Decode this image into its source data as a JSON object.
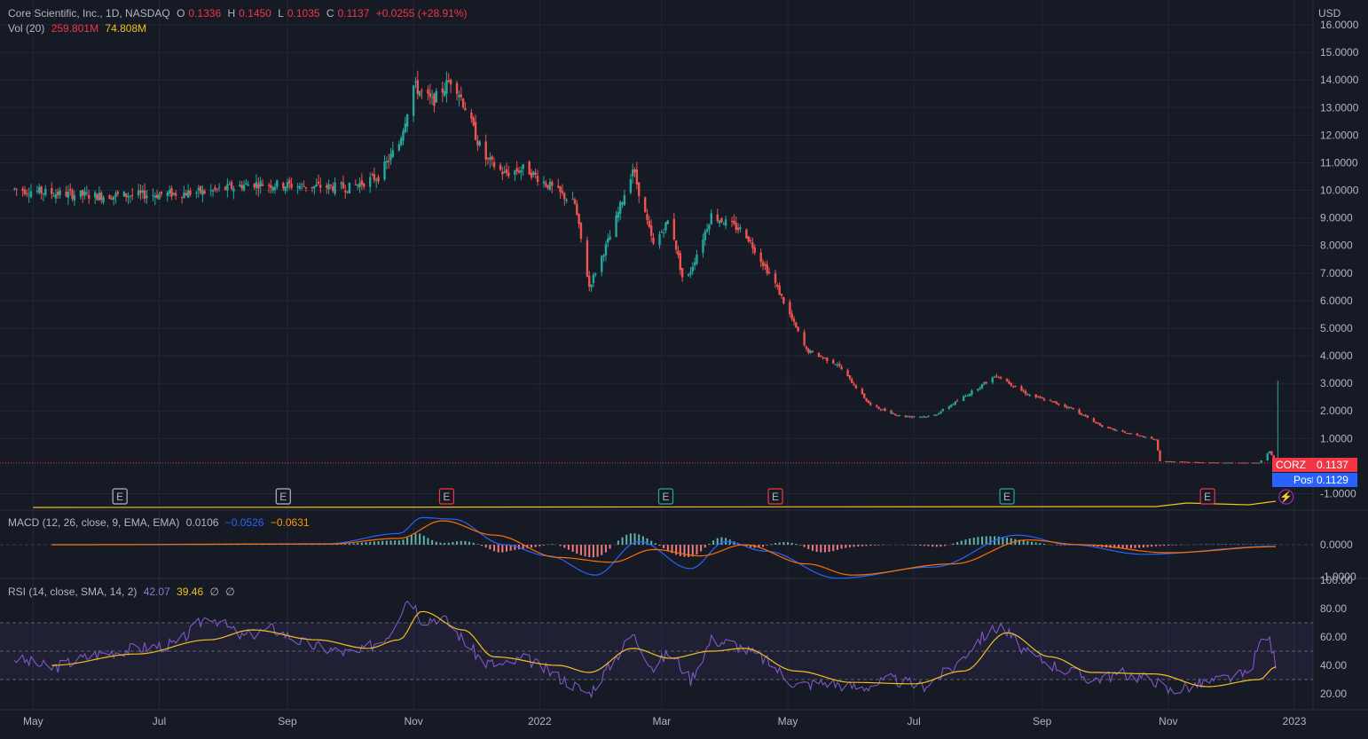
{
  "header": {
    "symbol_desc": "Core Scientific, Inc., 1D, NASDAQ",
    "o_label": "O",
    "o": "0.1336",
    "h_label": "H",
    "h": "0.1450",
    "l_label": "L",
    "l": "0.1035",
    "c_label": "C",
    "c": "0.1137",
    "change": "+0.0255 (+28.91%)",
    "vol_label": "Vol (20)",
    "vol": "259.801M",
    "vol_ma": "74.808M",
    "currency": "USD"
  },
  "macd_legend": {
    "label": "MACD (12, 26, close, 9, EMA, EMA)",
    "hist": "0.0106",
    "macd": "−0.0526",
    "signal": "−0.0631"
  },
  "rsi_legend": {
    "label": "RSI (14, close, SMA, 14, 2)",
    "rsi": "42.07",
    "sma": "39.46",
    "x1": "∅",
    "x2": "∅"
  },
  "price_tags": {
    "symbol": "CORZ",
    "last": "0.1137",
    "post_label": "Post",
    "post": "0.1129"
  },
  "events": {
    "earnings_glyph": "E",
    "dividend_glyph": "⚡"
  },
  "colors": {
    "up": "#26a69a",
    "down": "#ef5350",
    "macd": "#2962ff",
    "signal": "#ff6d00",
    "rsi": "#7e57c2",
    "rsi_sma": "#f0c020",
    "volume_ma": "#f0c020",
    "background": "#161a25"
  },
  "chart_data": [
    {
      "type": "candlestick",
      "title": "Core Scientific, Inc., 1D, NASDAQ",
      "ylabel": "USD",
      "ylim": [
        -1.5,
        16
      ],
      "yticks": [
        "16.0000",
        "15.0000",
        "14.0000",
        "13.0000",
        "12.0000",
        "11.0000",
        "10.0000",
        "9.0000",
        "8.0000",
        "7.0000",
        "6.0000",
        "5.0000",
        "4.0000",
        "3.0000",
        "2.0000",
        "1.0000",
        "-1.0000"
      ],
      "x_ticks": [
        "May",
        "Jul",
        "Sep",
        "Nov",
        "2022",
        "Mar",
        "May",
        "Jul",
        "Sep",
        "Nov",
        "2023"
      ],
      "x_range": [
        "2021-04-15",
        "2023-01-10"
      ],
      "close_approx": [
        [
          "2021-04-22",
          10.05
        ],
        [
          "2021-05-10",
          9.9
        ],
        [
          "2021-06-01",
          9.8
        ],
        [
          "2021-07-01",
          9.85
        ],
        [
          "2021-07-25",
          9.95
        ],
        [
          "2021-08-15",
          10.25
        ],
        [
          "2021-09-10",
          10.15
        ],
        [
          "2021-10-01",
          10.1
        ],
        [
          "2021-10-15",
          10.5
        ],
        [
          "2021-10-25",
          11.7
        ],
        [
          "2021-11-01",
          13.8
        ],
        [
          "2021-11-10",
          13.2
        ],
        [
          "2021-11-20",
          14.1
        ],
        [
          "2021-11-26",
          13.0
        ],
        [
          "2021-12-05",
          11.2
        ],
        [
          "2021-12-15",
          10.6
        ],
        [
          "2021-12-25",
          10.8
        ],
        [
          "2022-01-05",
          10.2
        ],
        [
          "2022-01-18",
          9.5
        ],
        [
          "2022-01-25",
          6.5
        ],
        [
          "2022-02-05",
          8.5
        ],
        [
          "2022-02-15",
          10.8
        ],
        [
          "2022-02-25",
          8.0
        ],
        [
          "2022-03-05",
          9.0
        ],
        [
          "2022-03-12",
          6.5
        ],
        [
          "2022-03-25",
          9.1
        ],
        [
          "2022-04-10",
          8.5
        ],
        [
          "2022-04-25",
          6.6
        ],
        [
          "2022-05-10",
          4.2
        ],
        [
          "2022-05-25",
          3.7
        ],
        [
          "2022-06-10",
          2.2
        ],
        [
          "2022-06-25",
          1.8
        ],
        [
          "2022-07-10",
          1.8
        ],
        [
          "2022-07-25",
          2.5
        ],
        [
          "2022-08-10",
          3.3
        ],
        [
          "2022-08-25",
          2.6
        ],
        [
          "2022-09-15",
          2.1
        ],
        [
          "2022-10-01",
          1.4
        ],
        [
          "2022-10-26",
          0.95
        ],
        [
          "2022-10-28",
          0.18
        ],
        [
          "2022-11-20",
          0.13
        ],
        [
          "2022-12-15",
          0.12
        ],
        [
          "2022-12-20",
          0.55
        ],
        [
          "2022-12-23",
          0.11
        ]
      ],
      "spikes": [
        [
          "2022-12-24",
          3.1
        ]
      ],
      "last": 0.1137,
      "post": 0.1129
    },
    {
      "type": "line",
      "title": "MACD (12, 26, close, 9, EMA, EMA)",
      "ylim": [
        -1.0,
        1.0
      ],
      "yticks": [
        "0.0000",
        "-1.0000"
      ],
      "series": [
        {
          "name": "MACD",
          "values": [
            [
              "2021-05-10",
              0.0
            ],
            [
              "2021-09-20",
              0.03
            ],
            [
              "2021-10-25",
              0.35
            ],
            [
              "2021-11-05",
              0.85
            ],
            [
              "2021-11-20",
              0.8
            ],
            [
              "2021-12-15",
              0.0
            ],
            [
              "2022-01-05",
              -0.35
            ],
            [
              "2022-01-28",
              -0.95
            ],
            [
              "2022-02-18",
              0.1
            ],
            [
              "2022-03-15",
              -0.75
            ],
            [
              "2022-04-01",
              0.1
            ],
            [
              "2022-04-20",
              -0.2
            ],
            [
              "2022-05-25",
              -1.05
            ],
            [
              "2022-07-10",
              -0.7
            ],
            [
              "2022-08-20",
              0.3
            ],
            [
              "2022-09-15",
              0.0
            ],
            [
              "2022-10-20",
              -0.3
            ],
            [
              "2022-12-23",
              -0.05
            ]
          ]
        },
        {
          "name": "Signal",
          "values": [
            [
              "2021-05-10",
              0.0
            ],
            [
              "2021-09-20",
              0.02
            ],
            [
              "2021-10-25",
              0.2
            ],
            [
              "2021-11-15",
              0.75
            ],
            [
              "2021-12-10",
              0.3
            ],
            [
              "2022-01-10",
              -0.4
            ],
            [
              "2022-02-05",
              -0.55
            ],
            [
              "2022-02-25",
              -0.15
            ],
            [
              "2022-03-20",
              -0.35
            ],
            [
              "2022-04-10",
              0.0
            ],
            [
              "2022-05-10",
              -0.6
            ],
            [
              "2022-06-01",
              -0.95
            ],
            [
              "2022-07-20",
              -0.6
            ],
            [
              "2022-08-25",
              0.15
            ],
            [
              "2022-09-20",
              0.0
            ],
            [
              "2022-11-01",
              -0.25
            ],
            [
              "2022-12-23",
              -0.06
            ]
          ]
        }
      ]
    },
    {
      "type": "line",
      "title": "RSI (14, close, SMA, 14, 2)",
      "ylim": [
        10,
        100
      ],
      "yticks": [
        "100.00",
        "80.00",
        "60.00",
        "40.00",
        "20.00"
      ],
      "bands": [
        30,
        50,
        70
      ],
      "series": [
        {
          "name": "RSI",
          "values": [
            [
              "2021-04-22",
              45
            ],
            [
              "2021-05-10",
              38
            ],
            [
              "2021-06-01",
              48
            ],
            [
              "2021-06-20",
              52
            ],
            [
              "2021-07-10",
              55
            ],
            [
              "2021-07-25",
              76
            ],
            [
              "2021-08-10",
              60
            ],
            [
              "2021-08-25",
              66
            ],
            [
              "2021-09-10",
              55
            ],
            [
              "2021-09-25",
              50
            ],
            [
              "2021-10-05",
              48
            ],
            [
              "2021-10-20",
              62
            ],
            [
              "2021-10-30",
              90
            ],
            [
              "2021-11-05",
              72
            ],
            [
              "2021-11-15",
              74
            ],
            [
              "2021-11-25",
              58
            ],
            [
              "2021-12-05",
              42
            ],
            [
              "2021-12-15",
              40
            ],
            [
              "2021-12-25",
              45
            ],
            [
              "2022-01-10",
              32
            ],
            [
              "2022-01-25",
              20
            ],
            [
              "2022-02-05",
              42
            ],
            [
              "2022-02-15",
              62
            ],
            [
              "2022-02-25",
              38
            ],
            [
              "2022-03-05",
              50
            ],
            [
              "2022-03-15",
              30
            ],
            [
              "2022-03-25",
              58
            ],
            [
              "2022-04-05",
              55
            ],
            [
              "2022-04-20",
              44
            ],
            [
              "2022-05-05",
              26
            ],
            [
              "2022-05-20",
              28
            ],
            [
              "2022-06-05",
              24
            ],
            [
              "2022-06-20",
              30
            ],
            [
              "2022-07-05",
              25
            ],
            [
              "2022-07-20",
              38
            ],
            [
              "2022-08-01",
              58
            ],
            [
              "2022-08-12",
              68
            ],
            [
              "2022-08-25",
              48
            ],
            [
              "2022-09-10",
              38
            ],
            [
              "2022-09-25",
              30
            ],
            [
              "2022-10-10",
              34
            ],
            [
              "2022-10-25",
              30
            ],
            [
              "2022-11-01",
              22
            ],
            [
              "2022-11-20",
              28
            ],
            [
              "2022-12-10",
              34
            ],
            [
              "2022-12-18",
              66
            ],
            [
              "2022-12-23",
              42
            ]
          ]
        },
        {
          "name": "RSI SMA",
          "values": [
            [
              "2021-05-10",
              40
            ],
            [
              "2021-06-20",
              48
            ],
            [
              "2021-07-25",
              58
            ],
            [
              "2021-08-15",
              65
            ],
            [
              "2021-09-15",
              58
            ],
            [
              "2021-10-10",
              52
            ],
            [
              "2021-10-25",
              58
            ],
            [
              "2021-11-05",
              78
            ],
            [
              "2021-11-25",
              65
            ],
            [
              "2021-12-10",
              46
            ],
            [
              "2022-01-10",
              40
            ],
            [
              "2022-01-25",
              35
            ],
            [
              "2022-02-15",
              52
            ],
            [
              "2022-03-05",
              45
            ],
            [
              "2022-03-25",
              50
            ],
            [
              "2022-04-10",
              52
            ],
            [
              "2022-05-05",
              36
            ],
            [
              "2022-06-01",
              28
            ],
            [
              "2022-07-01",
              27
            ],
            [
              "2022-07-25",
              36
            ],
            [
              "2022-08-15",
              63
            ],
            [
              "2022-09-05",
              46
            ],
            [
              "2022-09-25",
              35
            ],
            [
              "2022-10-25",
              34
            ],
            [
              "2022-11-20",
              25
            ],
            [
              "2022-12-15",
              30
            ],
            [
              "2022-12-23",
              39
            ]
          ]
        }
      ]
    }
  ]
}
